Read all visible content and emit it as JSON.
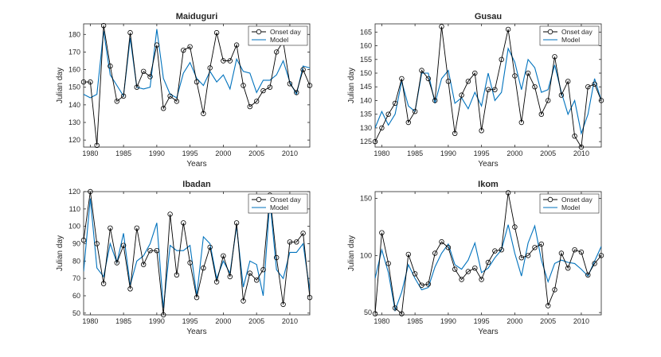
{
  "colors": {
    "onset": "#000000",
    "model": "#0072BD",
    "axis": "#262626",
    "frame": "#ffffff"
  },
  "chart_data": [
    {
      "type": "line",
      "title": "Maiduguri",
      "xlabel": "Years",
      "ylabel": "Julian day",
      "xlim": [
        1979,
        2013
      ],
      "ylim": [
        116,
        186
      ],
      "xticks": [
        1980,
        1985,
        1990,
        1995,
        2000,
        2005,
        2010
      ],
      "yticks": [
        120,
        130,
        140,
        150,
        160,
        170,
        180
      ],
      "legend": {
        "position": "top-right",
        "entries": [
          "Onset day",
          "Model"
        ]
      },
      "x": [
        1979,
        1980,
        1981,
        1982,
        1983,
        1984,
        1985,
        1986,
        1987,
        1988,
        1989,
        1990,
        1991,
        1992,
        1993,
        1994,
        1995,
        1996,
        1997,
        1998,
        1999,
        2000,
        2001,
        2002,
        2003,
        2004,
        2005,
        2006,
        2007,
        2008,
        2009,
        2010,
        2011,
        2012,
        2013
      ],
      "series": [
        {
          "name": "Onset day",
          "values": [
            153,
            153,
            117,
            185,
            162,
            142,
            145,
            181,
            150,
            159,
            156,
            174,
            138,
            145,
            142,
            171,
            173,
            153,
            135,
            161,
            181,
            165,
            165,
            174,
            151,
            139,
            142,
            148,
            150,
            170,
            176,
            152,
            147,
            160,
            151
          ]
        },
        {
          "name": "Model",
          "values": [
            146,
            144,
            146,
            182,
            157,
            151,
            145,
            178,
            150,
            149,
            150,
            183,
            155,
            146,
            144,
            158,
            164,
            155,
            151,
            159,
            153,
            157,
            149,
            166,
            159,
            158,
            147,
            154,
            154,
            157,
            165,
            153,
            146,
            162,
            161
          ]
        }
      ]
    },
    {
      "type": "line",
      "title": "Gusau",
      "xlabel": "Years",
      "ylabel": "Julian day",
      "xlim": [
        1979,
        2013
      ],
      "ylim": [
        123,
        168
      ],
      "xticks": [
        1980,
        1985,
        1990,
        1995,
        2000,
        2005,
        2010
      ],
      "yticks": [
        125,
        130,
        135,
        140,
        145,
        150,
        155,
        160,
        165
      ],
      "legend": {
        "position": "top-right",
        "entries": [
          "Onset day",
          "Model"
        ]
      },
      "x": [
        1979,
        1980,
        1981,
        1982,
        1983,
        1984,
        1985,
        1986,
        1987,
        1988,
        1989,
        1990,
        1991,
        1992,
        1993,
        1994,
        1995,
        1996,
        1997,
        1998,
        1999,
        2000,
        2001,
        2002,
        2003,
        2004,
        2005,
        2006,
        2007,
        2008,
        2009,
        2010,
        2011,
        2012,
        2013
      ],
      "series": [
        {
          "name": "Onset day",
          "values": [
            125,
            130,
            135,
            139,
            148,
            132,
            136,
            151,
            148,
            140,
            167,
            147,
            128,
            142,
            147,
            150,
            129,
            144,
            144,
            155,
            166,
            149,
            132,
            150,
            145,
            135,
            140,
            156,
            142,
            147,
            127,
            123,
            145,
            146,
            140
          ]
        },
        {
          "name": "Model",
          "values": [
            130,
            136,
            131,
            135,
            147,
            138,
            136,
            150,
            150,
            139,
            148,
            151,
            139,
            141,
            137,
            143,
            138,
            150,
            140,
            143,
            159,
            154,
            144,
            155,
            152,
            143,
            144,
            153,
            143,
            135,
            140,
            128,
            135,
            148,
            140
          ]
        }
      ]
    },
    {
      "type": "line",
      "title": "Ibadan",
      "xlabel": "Years",
      "ylabel": "Julian day",
      "xlim": [
        1979,
        2013
      ],
      "ylim": [
        49,
        120
      ],
      "xticks": [
        1980,
        1985,
        1990,
        1995,
        2000,
        2005,
        2010
      ],
      "yticks": [
        50,
        60,
        70,
        80,
        90,
        100,
        110,
        120
      ],
      "legend": {
        "position": "top-right",
        "entries": [
          "Onset day",
          "Model"
        ]
      },
      "x": [
        1979,
        1980,
        1981,
        1982,
        1983,
        1984,
        1985,
        1986,
        1987,
        1988,
        1989,
        1990,
        1991,
        1992,
        1993,
        1994,
        1995,
        1996,
        1997,
        1998,
        1999,
        2000,
        2001,
        2002,
        2003,
        2004,
        2005,
        2006,
        2007,
        2008,
        2009,
        2010,
        2011,
        2012,
        2013
      ],
      "series": [
        {
          "name": "Onset day",
          "values": [
            92,
            120,
            90,
            67,
            99,
            79,
            89,
            64,
            99,
            78,
            86,
            86,
            49,
            107,
            72,
            102,
            79,
            59,
            76,
            88,
            68,
            83,
            71,
            102,
            57,
            73,
            69,
            75,
            118,
            82,
            55,
            91,
            91,
            96,
            59
          ]
        },
        {
          "name": "Model",
          "values": [
            74,
            116,
            76,
            71,
            90,
            79,
            96,
            66,
            80,
            83,
            90,
            102,
            53,
            89,
            86,
            86,
            89,
            60,
            94,
            90,
            70,
            80,
            73,
            100,
            65,
            80,
            78,
            60,
            115,
            75,
            70,
            85,
            85,
            90,
            63
          ]
        }
      ]
    },
    {
      "type": "line",
      "title": "Ikom",
      "xlabel": "Years",
      "ylabel": "Julian day",
      "xlim": [
        1979,
        2013
      ],
      "ylim": [
        48,
        156
      ],
      "xticks": [
        1980,
        1985,
        1990,
        1995,
        2000,
        2005,
        2010
      ],
      "yticks": [
        50,
        100,
        150
      ],
      "legend": {
        "position": "top-right",
        "entries": [
          "Onset day",
          "Model"
        ]
      },
      "x": [
        1979,
        1980,
        1981,
        1982,
        1983,
        1984,
        1985,
        1986,
        1987,
        1988,
        1989,
        1990,
        1991,
        1992,
        1993,
        1994,
        1995,
        1996,
        1997,
        1998,
        1999,
        2000,
        2001,
        2002,
        2003,
        2004,
        2005,
        2006,
        2007,
        2008,
        2009,
        2010,
        2011,
        2012,
        2013
      ],
      "series": [
        {
          "name": "Onset day",
          "values": [
            49,
            120,
            93,
            54,
            49,
            101,
            84,
            74,
            75,
            102,
            112,
            107,
            88,
            79,
            86,
            89,
            79,
            94,
            104,
            105,
            155,
            125,
            98,
            100,
            107,
            110,
            56,
            70,
            102,
            89,
            105,
            103,
            83,
            93,
            100
          ]
        },
        {
          "name": "Model",
          "values": [
            80,
            105,
            85,
            52,
            68,
            92,
            80,
            70,
            72,
            90,
            102,
            110,
            92,
            88,
            96,
            111,
            85,
            89,
            98,
            105,
            127,
            102,
            82,
            111,
            126,
            96,
            77,
            93,
            96,
            94,
            93,
            88,
            82,
            95,
            108
          ]
        }
      ]
    }
  ]
}
